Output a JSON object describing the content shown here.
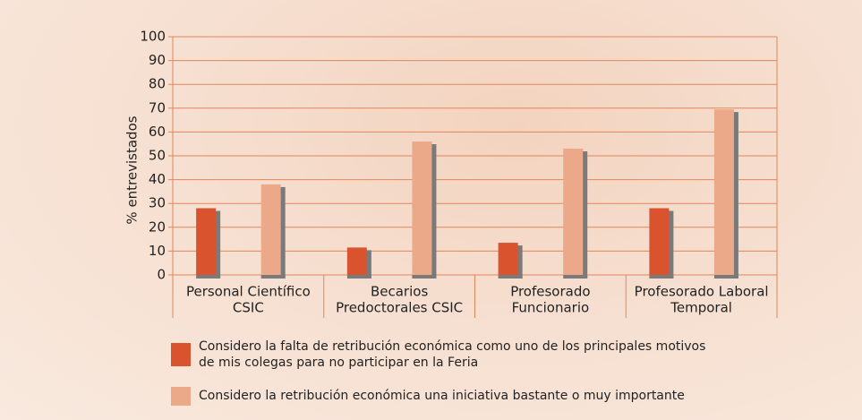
{
  "chart_data": {
    "type": "bar",
    "ylabel": "% entrevistados",
    "categories": [
      [
        "Personal Científico",
        "CSIC"
      ],
      [
        "Becarios",
        "Predoctorales CSIC"
      ],
      [
        "Profesorado",
        "Funcionario"
      ],
      [
        "Profesorado Laboral",
        "Temporal"
      ]
    ],
    "series": [
      {
        "name": "Considero la falta de retribución económica como uno de los principales motivos de mis colegas para no participar en la Feria",
        "color": "#d9532f",
        "values": [
          28,
          11.5,
          13.5,
          28
        ]
      },
      {
        "name": "Considero la retribución económica una iniciativa bastante o muy importante",
        "color": "#eba98a",
        "values": [
          38,
          56,
          53,
          69.5
        ]
      }
    ],
    "ylim": [
      0,
      100
    ],
    "yticks": [
      0,
      10,
      20,
      30,
      40,
      50,
      60,
      70,
      80,
      90,
      100
    ],
    "grid": true
  }
}
